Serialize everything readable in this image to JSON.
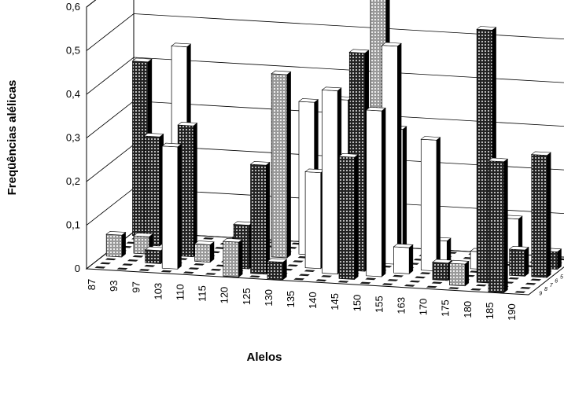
{
  "chart_data": {
    "type": "bar",
    "title": "",
    "ylabel": "Freqüências alélicas",
    "xlabel": "Alelos",
    "ylim": [
      0,
      0.6
    ],
    "yticks": [
      "0",
      "0,1",
      "0,2",
      "0,3",
      "0,4",
      "0,5",
      "0,6"
    ],
    "xticks": [
      "87",
      "93",
      "97",
      "103",
      "110",
      "115",
      "120",
      "125",
      "130",
      "135",
      "140",
      "145",
      "150",
      "155",
      "163",
      "170",
      "175",
      "180",
      "185",
      "190"
    ],
    "depth_ticks": [
      "1",
      "2",
      "3",
      "4",
      "5",
      "6",
      "7",
      "8",
      "9"
    ],
    "grid": true,
    "bars": [
      {
        "x": 0,
        "row": 1,
        "value": 0.4,
        "style": "dark"
      },
      {
        "x": 0,
        "row": 6,
        "value": 0.05,
        "style": "medium"
      },
      {
        "x": 1,
        "row": 3,
        "value": 0.25,
        "style": "dark"
      },
      {
        "x": 1,
        "row": 5,
        "value": 0.04,
        "style": "medium"
      },
      {
        "x": 2,
        "row": 2,
        "value": 0.45,
        "style": "light"
      },
      {
        "x": 2,
        "row": 7,
        "value": 0.03,
        "style": "dark"
      },
      {
        "x": 3,
        "row": 5,
        "value": 0.3,
        "style": "dark"
      },
      {
        "x": 3,
        "row": 8,
        "value": 0.28,
        "style": "light"
      },
      {
        "x": 4,
        "row": 6,
        "value": 0.04,
        "style": "medium"
      },
      {
        "x": 5,
        "row": 3,
        "value": 0.03,
        "style": "dark"
      },
      {
        "x": 6,
        "row": 7,
        "value": 0.1,
        "style": "dark"
      },
      {
        "x": 6,
        "row": 9,
        "value": 0.08,
        "style": "medium"
      },
      {
        "x": 7,
        "row": 4,
        "value": 0.42,
        "style": "medium"
      },
      {
        "x": 7,
        "row": 8,
        "value": 0.25,
        "style": "dark"
      },
      {
        "x": 8,
        "row": 3,
        "value": 0.35,
        "style": "light"
      },
      {
        "x": 8,
        "row": 9,
        "value": 0.04,
        "style": "dark"
      },
      {
        "x": 9,
        "row": 6,
        "value": 0.22,
        "style": "light"
      },
      {
        "x": 9,
        "row": 2,
        "value": 0.1,
        "style": "light"
      },
      {
        "x": 10,
        "row": 5,
        "value": 0.38,
        "style": "light"
      },
      {
        "x": 10,
        "row": 7,
        "value": 0.42,
        "style": "light"
      },
      {
        "x": 11,
        "row": 6,
        "value": 0.5,
        "style": "dark"
      },
      {
        "x": 11,
        "row": 8,
        "value": 0.28,
        "style": "dark"
      },
      {
        "x": 11,
        "row": 2,
        "value": 0.62,
        "style": "medium"
      },
      {
        "x": 12,
        "row": 4,
        "value": 0.5,
        "style": "light"
      },
      {
        "x": 12,
        "row": 7,
        "value": 0.38,
        "style": "light"
      },
      {
        "x": 12,
        "row": 3,
        "value": 0.3,
        "style": "light"
      },
      {
        "x": 13,
        "row": 6,
        "value": 0.06,
        "style": "light"
      },
      {
        "x": 14,
        "row": 5,
        "value": 0.3,
        "style": "light"
      },
      {
        "x": 14,
        "row": 3,
        "value": 0.05,
        "style": "light"
      },
      {
        "x": 15,
        "row": 7,
        "value": 0.04,
        "style": "dark"
      },
      {
        "x": 16,
        "row": 4,
        "value": 0.04,
        "style": "light"
      },
      {
        "x": 16,
        "row": 8,
        "value": 0.05,
        "style": "medium"
      },
      {
        "x": 17,
        "row": 7,
        "value": 0.58,
        "style": "dark"
      },
      {
        "x": 17,
        "row": 2,
        "value": 0.1,
        "style": "light"
      },
      {
        "x": 18,
        "row": 5,
        "value": 0.06,
        "style": "dark"
      },
      {
        "x": 18,
        "row": 9,
        "value": 0.3,
        "style": "dark"
      },
      {
        "x": 19,
        "row": 3,
        "value": 0.04,
        "style": "dark"
      },
      {
        "x": 19,
        "row": 5,
        "value": 0.28,
        "style": "dark"
      }
    ]
  },
  "colors": {
    "light": "#ffffff",
    "medium": "#b8b8b8",
    "dark": "#303030",
    "grid": "#000000",
    "floor_tile": "#1a1a1a"
  }
}
